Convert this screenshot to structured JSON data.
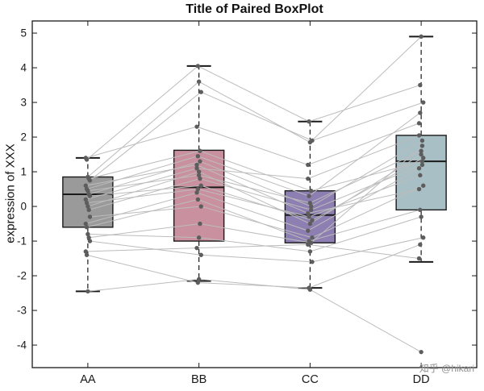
{
  "chart_data": {
    "type": "boxplot",
    "title": "Title of Paired BoxPlot",
    "ylabel": "expression of XXX",
    "xlabel": "",
    "categories": [
      "AA",
      "BB",
      "CC",
      "DD"
    ],
    "ylim": [
      -4.65,
      5.35
    ],
    "yticks": [
      -4,
      -3,
      -2,
      -1,
      0,
      1,
      2,
      3,
      4,
      5
    ],
    "grid": false,
    "box_colors": [
      "#9a9a9a",
      "#c9919f",
      "#8d7fb1",
      "#a7bfc5"
    ],
    "boxes": [
      {
        "category": "AA",
        "whisker_low": -2.45,
        "q1": -0.6,
        "median": 0.35,
        "q3": 0.85,
        "whisker_high": 1.4
      },
      {
        "category": "BB",
        "whisker_low": -2.15,
        "q1": -1.0,
        "median": 0.55,
        "q3": 1.62,
        "whisker_high": 4.05
      },
      {
        "category": "CC",
        "whisker_low": -2.35,
        "q1": -1.05,
        "median": -0.25,
        "q3": 0.45,
        "whisker_high": 2.45
      },
      {
        "category": "DD",
        "whisker_low": -1.6,
        "q1": -0.1,
        "median": 1.3,
        "q3": 2.05,
        "whisker_high": 4.9
      }
    ],
    "paired_samples": [
      [
        1.4,
        2.3,
        1.2,
        2.4
      ],
      [
        1.35,
        4.05,
        2.45,
        3.5
      ],
      [
        0.85,
        3.6,
        1.85,
        4.9
      ],
      [
        0.8,
        1.6,
        0.45,
        1.3
      ],
      [
        0.75,
        3.3,
        1.9,
        3.0
      ],
      [
        0.6,
        1.2,
        -0.2,
        0.5
      ],
      [
        0.5,
        1.45,
        0.3,
        2.7
      ],
      [
        0.45,
        0.9,
        0.1,
        1.6
      ],
      [
        0.35,
        1.3,
        0.0,
        1.9
      ],
      [
        0.3,
        0.6,
        -0.4,
        1.4
      ],
      [
        0.2,
        1.1,
        0.8,
        2.05
      ],
      [
        0.1,
        0.5,
        -0.3,
        0.9
      ],
      [
        0.0,
        1.0,
        -0.5,
        1.5
      ],
      [
        -0.1,
        0.8,
        -0.1,
        1.2
      ],
      [
        -0.3,
        0.0,
        -0.9,
        0.6
      ],
      [
        -0.5,
        0.4,
        -0.7,
        1.1
      ],
      [
        -0.6,
        0.2,
        -1.0,
        -0.1
      ],
      [
        -0.8,
        -0.9,
        -1.3,
        -0.3
      ],
      [
        -0.9,
        -0.5,
        -1.05,
        1.75
      ],
      [
        -1.0,
        -1.4,
        -1.6,
        -0.9
      ],
      [
        -1.3,
        -1.2,
        -1.1,
        -1.5
      ],
      [
        -1.4,
        -2.2,
        -2.35,
        -1.1
      ],
      [
        -2.45,
        -2.1,
        -2.4,
        -4.2
      ]
    ],
    "watermark": "知乎 @hikari"
  }
}
